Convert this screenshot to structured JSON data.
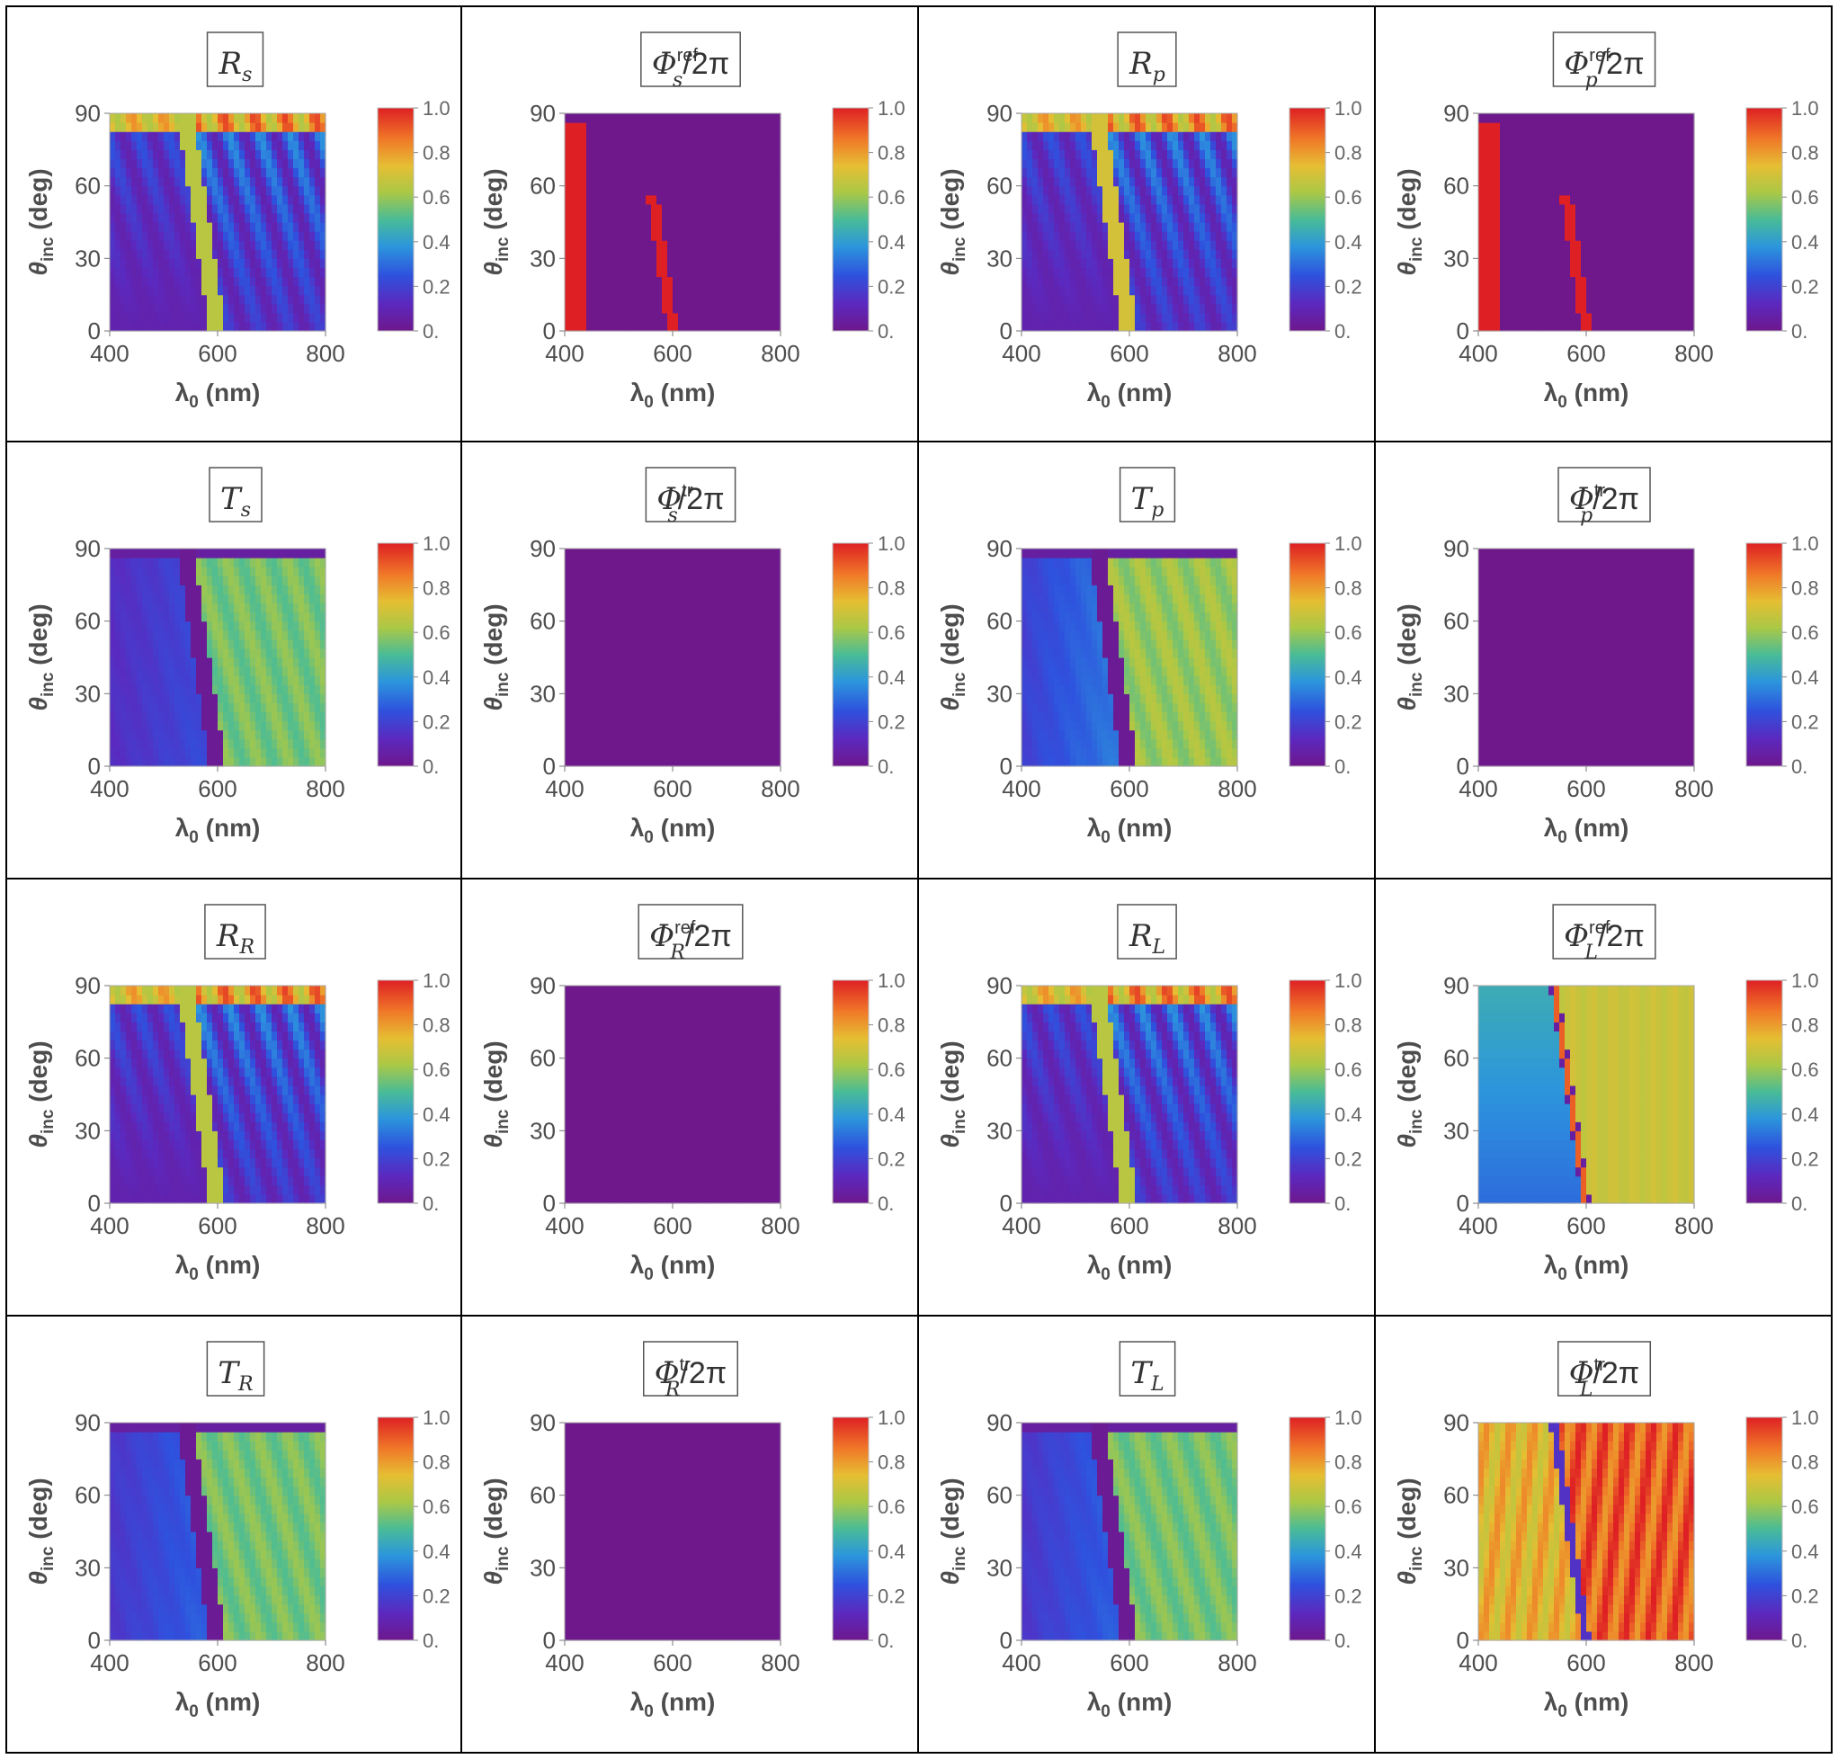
{
  "chart_data": {
    "type": "heatmap",
    "layout": "4x4 grid",
    "xlabel": {
      "symbol": "λ",
      "subscript": "0",
      "unit": "(nm)"
    },
    "ylabel": {
      "symbol": "θ",
      "subscript": "inc",
      "unit": "(deg)"
    },
    "xlim": [
      400,
      800
    ],
    "ylim": [
      0,
      90
    ],
    "xticks": [
      "400",
      "600",
      "800"
    ],
    "yticks": [
      "0",
      "30",
      "60",
      "90"
    ],
    "colorbar": {
      "range": [
        0,
        1
      ],
      "ticks": [
        "0.",
        "0.2",
        "0.4",
        "0.6",
        "0.8",
        "1.0"
      ],
      "colormap": "rainbow (purple-blue-green-yellow-orange-red)"
    },
    "panels": [
      {
        "id": "R_s",
        "title": {
          "main": "R",
          "sub": "s",
          "sup": "",
          "tail": ""
        },
        "pattern": "reflect",
        "notch_nm": [
          540,
          600
        ],
        "base_value": 0.65
      },
      {
        "id": "Phi_s_ref",
        "title": {
          "main": "Φ",
          "sub": "s",
          "sup": "ref",
          "tail": "/2π"
        },
        "pattern": "phase_sparse",
        "value": 0.0,
        "highlight_value": 1.0
      },
      {
        "id": "R_p",
        "title": {
          "main": "R",
          "sub": "p",
          "sup": "",
          "tail": ""
        },
        "pattern": "reflect",
        "notch_nm": [
          540,
          600
        ],
        "base_value": 0.7
      },
      {
        "id": "Phi_p_ref",
        "title": {
          "main": "Φ",
          "sub": "p",
          "sup": "ref",
          "tail": "/2π"
        },
        "pattern": "phase_sparse",
        "value": 0.0,
        "highlight_value": 1.0
      },
      {
        "id": "T_s",
        "title": {
          "main": "T",
          "sub": "s",
          "sup": "",
          "tail": ""
        },
        "pattern": "transmit",
        "notch_nm": [
          540,
          600
        ],
        "left_value": 0.2,
        "right_value": 0.6
      },
      {
        "id": "Phi_s_tr",
        "title": {
          "main": "Φ",
          "sub": "s",
          "sup": "tr",
          "tail": "/2π"
        },
        "pattern": "uniform",
        "value": 0.0
      },
      {
        "id": "T_p",
        "title": {
          "main": "T",
          "sub": "p",
          "sup": "",
          "tail": ""
        },
        "pattern": "transmit",
        "notch_nm": [
          540,
          600
        ],
        "left_value": 0.3,
        "right_value": 0.65
      },
      {
        "id": "Phi_p_tr",
        "title": {
          "main": "Φ",
          "sub": "p",
          "sup": "tr",
          "tail": "/2π"
        },
        "pattern": "uniform",
        "value": 0.0
      },
      {
        "id": "R_R",
        "title": {
          "main": "R",
          "sub": "R",
          "sup": "",
          "tail": ""
        },
        "pattern": "reflect",
        "notch_nm": [
          540,
          600
        ],
        "base_value": 0.65
      },
      {
        "id": "Phi_R_ref",
        "title": {
          "main": "Φ",
          "sub": "R",
          "sup": "ref",
          "tail": "/2π"
        },
        "pattern": "uniform",
        "value": 0.0
      },
      {
        "id": "R_L",
        "title": {
          "main": "R",
          "sub": "L",
          "sup": "",
          "tail": ""
        },
        "pattern": "reflect",
        "notch_nm": [
          540,
          600
        ],
        "base_value": 0.65
      },
      {
        "id": "Phi_L_ref",
        "title": {
          "main": "Φ",
          "sub": "L",
          "sup": "ref",
          "tail": "/2π"
        },
        "pattern": "phase_split",
        "left_value": 0.45,
        "right_value": 0.68,
        "boundary_nm": [
          600,
          540
        ]
      },
      {
        "id": "T_R",
        "title": {
          "main": "T",
          "sub": "R",
          "sup": "",
          "tail": ""
        },
        "pattern": "transmit",
        "notch_nm": [
          540,
          600
        ],
        "left_value": 0.25,
        "right_value": 0.6
      },
      {
        "id": "Phi_R_tr",
        "title": {
          "main": "Φ",
          "sub": "R",
          "sup": "tr",
          "tail": "/2π"
        },
        "pattern": "uniform",
        "value": 0.0
      },
      {
        "id": "T_L",
        "title": {
          "main": "T",
          "sub": "L",
          "sup": "",
          "tail": ""
        },
        "pattern": "transmit",
        "notch_nm": [
          540,
          600
        ],
        "left_value": 0.25,
        "right_value": 0.6
      },
      {
        "id": "Phi_L_tr",
        "title": {
          "main": "Φ",
          "sub": "L",
          "sup": "tr",
          "tail": "/2π"
        },
        "pattern": "phase_striped",
        "left_value": 0.75,
        "right_value": 0.9
      }
    ]
  }
}
